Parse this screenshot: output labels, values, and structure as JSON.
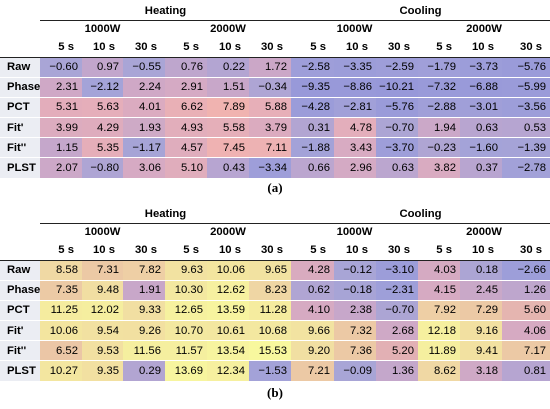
{
  "groups": {
    "heating": "Heating",
    "cooling": "Cooling"
  },
  "powers": [
    "1000W",
    "2000W",
    "1000W",
    "2000W"
  ],
  "durations": [
    "5 s",
    "10 s",
    "30 s",
    "5 s",
    "10 s",
    "30 s",
    "5 s",
    "10 s",
    "30 s",
    "5 s",
    "10 s",
    "30 s"
  ],
  "tables": [
    {
      "caption": "(a)",
      "rows": [
        {
          "label": "Raw",
          "values": [
            "−0.60",
            "0.97",
            "−0.55",
            "0.76",
            "0.22",
            "1.72",
            "−2.58",
            "−3.35",
            "−2.59",
            "−1.79",
            "−3.73",
            "−5.76"
          ]
        },
        {
          "label": "Phase",
          "values": [
            "2.31",
            "−2.12",
            "2.24",
            "2.91",
            "1.51",
            "−0.34",
            "−9.35",
            "−8.86",
            "−10.21",
            "−7.32",
            "−6.88",
            "−5.99"
          ]
        },
        {
          "label": "PCT",
          "values": [
            "5.31",
            "5.63",
            "4.01",
            "6.62",
            "7.89",
            "5.88",
            "−4.28",
            "−2.81",
            "−5.76",
            "−2.88",
            "−3.01",
            "−3.56"
          ]
        },
        {
          "label": "Fit'",
          "values": [
            "3.99",
            "4.29",
            "1.93",
            "4.93",
            "5.58",
            "3.79",
            "0.31",
            "4.78",
            "−0.70",
            "1.94",
            "0.63",
            "0.53"
          ]
        },
        {
          "label": "Fit''",
          "values": [
            "1.15",
            "5.35",
            "−1.17",
            "4.57",
            "7.45",
            "7.11",
            "−1.88",
            "3.43",
            "−3.70",
            "−0.23",
            "−1.60",
            "−1.39"
          ]
        },
        {
          "label": "PLST",
          "values": [
            "2.07",
            "−0.80",
            "3.06",
            "5.10",
            "0.43",
            "−3.34",
            "0.66",
            "2.96",
            "0.63",
            "3.82",
            "0.37",
            "−2.78"
          ]
        }
      ],
      "colors": [
        [
          "#a9a5d6",
          "#c2a6cc",
          "#a9a5d6",
          "#bea6cd",
          "#b3a5d2",
          "#cba7c7",
          "#9e9ed9",
          "#9c9dd9",
          "#9e9ed9",
          "#a09fd9",
          "#9c9dd9",
          "#9a9bd9"
        ],
        [
          "#cfa8c6",
          "#a4a3d8",
          "#cfa8c6",
          "#d5aac4",
          "#c8a7c9",
          "#aeA5d4",
          "#9899d9",
          "#9899d9",
          "#9798d9",
          "#999ad9",
          "#999ad9",
          "#9a9bd9"
        ],
        [
          "#e3adbb",
          "#e5aeba",
          "#dbabc0",
          "#e9b0b6",
          "#f0b3b0",
          "#e7afb8",
          "#9b9cd9",
          "#a1a0d8",
          "#9a9bd9",
          "#a09fd8",
          "#a09fd8",
          "#9d9ed9"
        ],
        [
          "#dcacbf",
          "#deacbd",
          "#ceaac6",
          "#e2aebb",
          "#e5afb9",
          "#dbabbf",
          "#b2a5d2",
          "#e3aebb",
          "#aca5d4",
          "#cba8c8",
          "#b8a5d0",
          "#b6a5d1"
        ],
        [
          "#c5a7cb",
          "#e5aeb9",
          "#a6a4d6",
          "#dfadbd",
          "#efb2b2",
          "#edb2b3",
          "#a3a2d8",
          "#d8abc2",
          "#9e9ed9",
          "#afa5d3",
          "#a4a3d8",
          "#a5a3d7"
        ],
        [
          "#cca8c8",
          "#aea5d4",
          "#d6aac3",
          "#e0adbc",
          "#b7a5d1",
          "#9e9ed9",
          "#bba6cf",
          "#d4aac4",
          "#bba6cf",
          "#d9abc1",
          "#b8a5d0",
          "#a2a1d8"
        ]
      ]
    },
    {
      "caption": "(b)",
      "rows": [
        {
          "label": "Raw",
          "values": [
            "8.58",
            "7.31",
            "7.82",
            "9.63",
            "10.06",
            "9.65",
            "4.28",
            "−0.12",
            "−3.10",
            "4.03",
            "0.18",
            "−2.66"
          ]
        },
        {
          "label": "Phase",
          "values": [
            "7.35",
            "9.48",
            "1.91",
            "10.30",
            "12.62",
            "8.23",
            "0.62",
            "−0.18",
            "−2.31",
            "4.15",
            "2.45",
            "1.26"
          ]
        },
        {
          "label": "PCT",
          "values": [
            "11.25",
            "12.02",
            "9.33",
            "12.65",
            "13.59",
            "11.28",
            "4.10",
            "2.38",
            "−0.70",
            "7.92",
            "7.29",
            "5.60"
          ]
        },
        {
          "label": "Fit'",
          "values": [
            "10.06",
            "9.54",
            "9.26",
            "10.70",
            "10.61",
            "10.68",
            "9.66",
            "7.32",
            "2.68",
            "12.18",
            "9.16",
            "4.06"
          ]
        },
        {
          "label": "Fit''",
          "values": [
            "6.52",
            "9.53",
            "11.56",
            "11.57",
            "13.54",
            "15.53",
            "9.20",
            "7.36",
            "5.20",
            "11.89",
            "9.41",
            "7.17"
          ]
        },
        {
          "label": "PLST",
          "values": [
            "10.27",
            "9.35",
            "0.29",
            "13.69",
            "12.34",
            "−1.53",
            "7.21",
            "−0.09",
            "1.36",
            "8.62",
            "3.18",
            "0.81"
          ]
        }
      ],
      "colors": [
        [
          "#f0d9a4",
          "#ecc9a5",
          "#eecfa5",
          "#f2e2a1",
          "#f3e59f",
          "#f2e2a1",
          "#d9abbf",
          "#a8a5d6",
          "#9c9dd9",
          "#d5aac2",
          "#aca5d4",
          "#9d9ed9"
        ],
        [
          "#eccaa5",
          "#f1dea2",
          "#c8a7c9",
          "#f3e8a0",
          "#f6f0a0",
          "#efd6a4",
          "#b0a5d3",
          "#a7a4d6",
          "#9e9fd9",
          "#d6aac2",
          "#c9a8c8",
          "#bea6cd"
        ],
        [
          "#f5ec9f",
          "#f5ee9f",
          "#f1dfa2",
          "#f6f19f",
          "#f7f49f",
          "#f5ec9f",
          "#d6aac2",
          "#c7a7ca",
          "#aca5d4",
          "#eecfa5",
          "#ecc9a5",
          "#e5b5b0"
        ],
        [
          "#f3e59f",
          "#f2e1a1",
          "#f2e0a1",
          "#f3e8a0",
          "#f3e7a0",
          "#f3e8a0",
          "#f2e3a1",
          "#ecc9a5",
          "#cfa9c6",
          "#f6f09f",
          "#f2e0a1",
          "#d6aac2"
        ],
        [
          "#ebc6a6",
          "#f2e0a1",
          "#f5ef9f",
          "#f5ef9f",
          "#f7f49f",
          "#f8f89e",
          "#f1dfa2",
          "#ecc9a5",
          "#e2b0b4",
          "#f5ef9f",
          "#f2e1a1",
          "#ecc9a5"
        ],
        [
          "#f3e6a0",
          "#f2e0a1",
          "#b2a5d2",
          "#f7f59f",
          "#f6f09f",
          "#a3a2d8",
          "#ecc9a5",
          "#a8a5d6",
          "#c4a7cb",
          "#f0d8a4",
          "#cfa9c6",
          "#b6a5d1"
        ]
      ]
    }
  ]
}
